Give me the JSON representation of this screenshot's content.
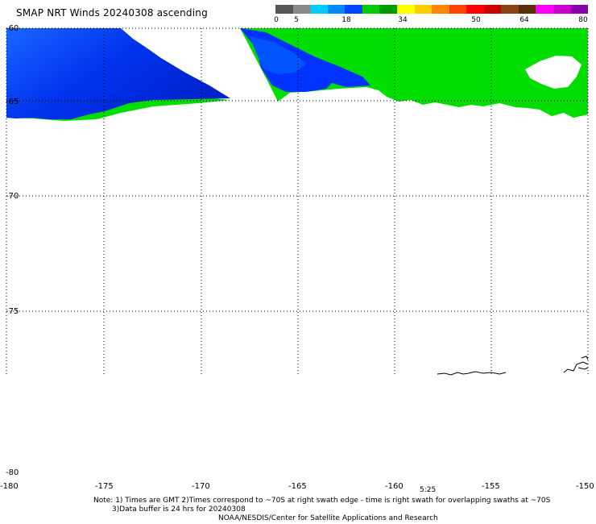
{
  "title": "SMAP NRT Winds 20240308 ascending",
  "legend": {
    "ticks": [
      "0",
      "5",
      "18",
      "34",
      "50",
      "64",
      "80"
    ],
    "colors": [
      "#555555",
      "#888888",
      "#00ccff",
      "#0088ff",
      "#0044ff",
      "#00cc00",
      "#009900",
      "#ffff00",
      "#ffcc00",
      "#ff8800",
      "#ff4400",
      "#ff0000",
      "#cc0000",
      "#8b4513",
      "#5a2d0c",
      "#ff00ff",
      "#cc00cc",
      "#8800aa"
    ]
  },
  "map": {
    "lat_labels": [
      "-60",
      "-65",
      "-70",
      "-75",
      "-80"
    ],
    "lon_labels": [
      "-180",
      "-175",
      "-170",
      "-165",
      "-160",
      "-155",
      "-150"
    ],
    "time_label": "5:25",
    "land_color": "#ffffff",
    "low_wind_color": "#0033ff",
    "mid_wind_color": "#00dd00"
  },
  "notes": {
    "line1": "Note: 1) Times are GMT 2)Times correspond to ~70S at right swath edge - time is right swath for overlapping swaths at ~70S",
    "line2": "3)Data buffer is 24 hrs for 20240308",
    "line3": "NOAA/NESDIS/Center for Satellite Applications and Research"
  }
}
